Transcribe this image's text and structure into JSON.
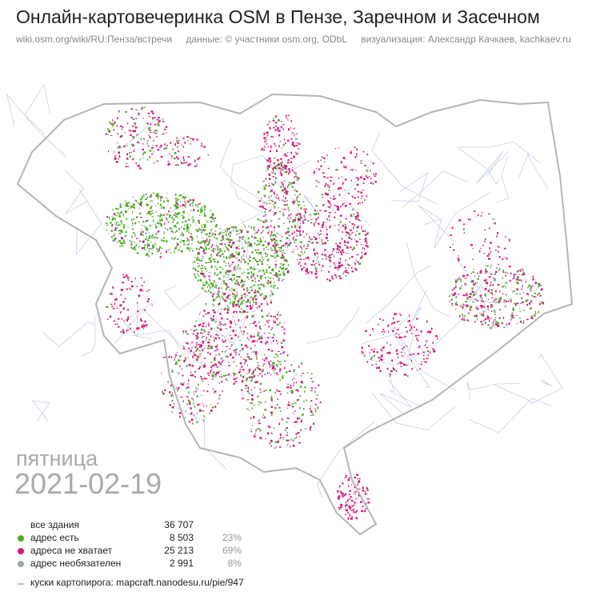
{
  "header": {
    "title": "Онлайн-картовечеринка OSM в Пензе, Заречном и Засечном",
    "subtitle": [
      "wiki.osm.org/wiki/RU:Пенза/встречи",
      "данные: © участники osm.org, ODbL",
      "визуализация: Александр Качкаев, kachkaev.ru"
    ]
  },
  "date": {
    "weekday": "пятница",
    "date": "2021-02-19"
  },
  "legend": {
    "total": {
      "label": "все здания",
      "count": "36 707"
    },
    "items": [
      {
        "label": "адрес есть",
        "count": "8 503",
        "percent": "23%",
        "color": "#4caf25"
      },
      {
        "label": "адреса не хватает",
        "count": "25 213",
        "percent": "69%",
        "color": "#d6197f"
      },
      {
        "label": "адрес необязателен",
        "count": "2 991",
        "percent": "8%",
        "color": "#9aa3b8"
      }
    ],
    "pie_link": {
      "label": "куски картопирога: mapcraft.nanodesu.ru/pie/947",
      "color": "#b8c4e0"
    }
  },
  "map": {
    "outline_color": "#b5b5b5",
    "pieces_color": "#c8d0e6"
  }
}
